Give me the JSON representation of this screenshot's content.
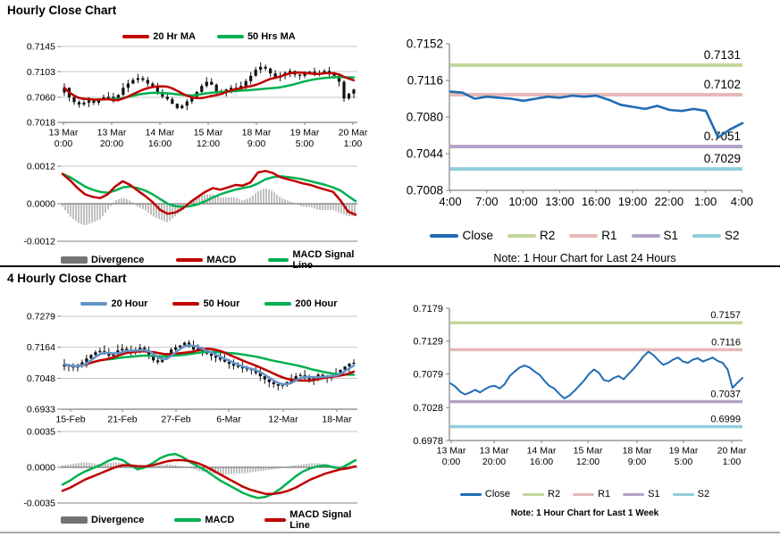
{
  "page": {
    "background": "#ffffff",
    "section_divider_color": "#000000",
    "bottom_divider_color": "#a8a8a8"
  },
  "colors": {
    "dark_red": "#C00000",
    "green": "#00B050",
    "close_blue": "#1F6CB4",
    "light_blue_ma": "#6494C8",
    "r2_olive": "#C3D69B",
    "r1_pink": "#E6B9B8",
    "s1_purple": "#B2A2C7",
    "s2_cyan": "#92CDDC",
    "divergence_gray": "#737373",
    "grid_gray": "#C6C6C6",
    "axis_gray": "#808080",
    "candle_black": "#111111"
  },
  "chart_data": [
    {
      "id": "hourly_candle",
      "type": "candlestick",
      "title": "Hourly Close Chart",
      "legend": [
        {
          "label": "20 Hr MA",
          "color": "#C00000"
        },
        {
          "label": "50 Hrs MA",
          "color": "#00B050"
        }
      ],
      "ylim": [
        0.7018,
        0.7145
      ],
      "y_ticks": [
        {
          "v": 0.7145,
          "label": "0.7145"
        },
        {
          "v": 0.7103,
          "label": "0.7103"
        },
        {
          "v": 0.706,
          "label": "0.7060"
        },
        {
          "v": 0.7018,
          "label": "0.7018"
        }
      ],
      "x_labels": [
        [
          "13 Mar",
          "0:00"
        ],
        [
          "13 Mar",
          "20:00"
        ],
        [
          "14 Mar",
          "16:00"
        ],
        [
          "15 Mar",
          "12:00"
        ],
        [
          "18 Mar",
          "9:00"
        ],
        [
          "19 Mar",
          "5:00"
        ],
        [
          "20 Mar",
          "1:00"
        ]
      ],
      "closes": [
        0.7076,
        0.706,
        0.7052,
        0.7048,
        0.7051,
        0.7055,
        0.7051,
        0.7056,
        0.706,
        0.7061,
        0.7057,
        0.7064,
        0.7076,
        0.7083,
        0.7089,
        0.7092,
        0.7089,
        0.7083,
        0.7078,
        0.7069,
        0.7061,
        0.7057,
        0.7049,
        0.7042,
        0.7046,
        0.7053,
        0.7061,
        0.7069,
        0.7079,
        0.7086,
        0.7081,
        0.707,
        0.7068,
        0.7073,
        0.7076,
        0.7071,
        0.7079,
        0.7087,
        0.7096,
        0.7106,
        0.7111,
        0.7108,
        0.71,
        0.7093,
        0.7096,
        0.7101,
        0.7104,
        0.7098,
        0.7096,
        0.7101,
        0.7103,
        0.7098,
        0.7101,
        0.7104,
        0.7099,
        0.7096,
        0.7086,
        0.7058,
        0.7066,
        0.7073
      ],
      "moving_averages": [
        {
          "name": "20 Hr MA",
          "window": 10,
          "color": "#C00000"
        },
        {
          "name": "50 Hrs MA",
          "window": 25,
          "color": "#00B050"
        }
      ]
    },
    {
      "id": "hourly_macd",
      "type": "macd",
      "ylim": [
        -0.0012,
        0.0012
      ],
      "y_ticks": [
        {
          "v": 0.0012,
          "label": "0.0012"
        },
        {
          "v": 0.0,
          "label": "0.0000"
        },
        {
          "v": -0.0012,
          "label": "-0.0012"
        }
      ],
      "legend": [
        {
          "label": "Divergence",
          "color": "#737373",
          "kind": "bar"
        },
        {
          "label": "MACD",
          "color": "#C00000",
          "kind": "line"
        },
        {
          "label": "MACD Signal Line",
          "color": "#00B050",
          "kind": "line"
        }
      ],
      "series": [
        {
          "name": "MACD Signal Line",
          "color": "#00B050",
          "values": [
            0.00095,
            0.00085,
            0.0007,
            0.00055,
            0.00045,
            0.00038,
            0.00035,
            0.00042,
            0.00052,
            0.00055,
            0.0005,
            0.00042,
            0.0003,
            0.00015,
            0.0,
            -8e-05,
            -0.0001,
            -8e-05,
            -2e-05,
            8e-05,
            0.0002,
            0.0003,
            0.00038,
            0.00045,
            0.0005,
            0.00055,
            0.00065,
            0.00078,
            0.00085,
            0.00088,
            0.00085,
            0.00082,
            0.00078,
            0.00072,
            0.00066,
            0.0006,
            0.00052,
            0.00042,
            0.00025,
            8e-05
          ]
        },
        {
          "name": "MACD",
          "color": "#C00000",
          "values": [
            0.00095,
            0.00075,
            0.0005,
            0.0003,
            0.00022,
            0.00018,
            0.0003,
            0.00055,
            0.00072,
            0.0006,
            0.00042,
            0.00025,
            5e-05,
            -0.0002,
            -0.00032,
            -0.00028,
            -0.00015,
            5e-05,
            0.00022,
            0.00038,
            0.0005,
            0.00045,
            0.00052,
            0.0006,
            0.00058,
            0.00068,
            0.001,
            0.00105,
            0.00098,
            0.00085,
            0.00078,
            0.00072,
            0.00065,
            0.0006,
            0.00052,
            0.00045,
            0.00038,
            0.0001,
            -0.00025,
            -0.00035
          ]
        }
      ],
      "divergence": [
        -0.0001,
        -0.0004,
        -0.0006,
        -0.0007,
        -0.0006,
        -0.0005,
        -0.0002,
        0.0001,
        0.0002,
        0.0001,
        -0.0001,
        -0.0002,
        -0.0004,
        -0.0005,
        -0.0006,
        -0.0004,
        -0.0002,
        0.0,
        0.0002,
        0.0003,
        0.0003,
        0.0002,
        0.0002,
        0.0002,
        0.0001,
        0.0002,
        0.0004,
        0.0005,
        0.0004,
        0.0002,
        0.0001,
        0.0,
        -0.0001,
        -0.0001,
        -0.0002,
        -0.0002,
        -0.0002,
        -0.0003,
        -0.0004,
        -0.0004
      ]
    },
    {
      "id": "hourly_levels",
      "type": "levels",
      "note": "Note: 1 Hour Chart for Last 24 Hours",
      "ylim": [
        0.7008,
        0.7152
      ],
      "y_ticks": [
        {
          "v": 0.7152,
          "label": "0.7152"
        },
        {
          "v": 0.7116,
          "label": "0.7116"
        },
        {
          "v": 0.708,
          "label": "0.7080"
        },
        {
          "v": 0.7044,
          "label": "0.7044"
        },
        {
          "v": 0.7008,
          "label": "0.7008"
        }
      ],
      "x_labels": [
        "4:00",
        "7:00",
        "10:00",
        "13:00",
        "16:00",
        "19:00",
        "22:00",
        "1:00",
        "4:00"
      ],
      "levels": [
        {
          "name": "R2",
          "value": 0.7131,
          "label": "0.7131",
          "color": "#C3D69B"
        },
        {
          "name": "R1",
          "value": 0.7102,
          "label": "0.7102",
          "color": "#E6B9B8"
        },
        {
          "name": "S1",
          "value": 0.7051,
          "label": "0.7051",
          "color": "#B2A2C7"
        },
        {
          "name": "S2",
          "value": 0.7029,
          "label": "0.7029",
          "color": "#92CDDC"
        }
      ],
      "close_color": "#1F6CB4",
      "close": [
        0.7105,
        0.7104,
        0.7098,
        0.71,
        0.7099,
        0.7098,
        0.7096,
        0.7098,
        0.71,
        0.7099,
        0.7101,
        0.71,
        0.7101,
        0.7097,
        0.7092,
        0.709,
        0.7088,
        0.7091,
        0.7087,
        0.7086,
        0.7088,
        0.7086,
        0.706,
        0.7068,
        0.7074
      ],
      "legend": [
        {
          "label": "Close",
          "color": "#1F6CB4"
        },
        {
          "label": "R2",
          "color": "#C3D69B"
        },
        {
          "label": "R1",
          "color": "#E6B9B8"
        },
        {
          "label": "S1",
          "color": "#B2A2C7"
        },
        {
          "label": "S2",
          "color": "#92CDDC"
        }
      ]
    },
    {
      "id": "four_hourly_candle",
      "type": "candlestick",
      "title": "4 Hourly Close Chart",
      "legend": [
        {
          "label": "20 Hour",
          "color": "#6494C8"
        },
        {
          "label": "50 Hour",
          "color": "#C00000"
        },
        {
          "label": "200 Hour",
          "color": "#00B050"
        }
      ],
      "ylim": [
        0.6933,
        0.7279
      ],
      "y_ticks": [
        {
          "v": 0.7279,
          "label": "0.7279"
        },
        {
          "v": 0.7164,
          "label": "0.7164"
        },
        {
          "v": 0.7048,
          "label": "0.7048"
        },
        {
          "v": 0.6933,
          "label": "0.6933"
        }
      ],
      "x_labels": [
        "15-Feb",
        "21-Feb",
        "27-Feb",
        "6-Mar",
        "12-Mar",
        "18-Mar"
      ],
      "closes": [
        0.71,
        0.7092,
        0.7088,
        0.7095,
        0.7108,
        0.7122,
        0.7135,
        0.7145,
        0.715,
        0.7142,
        0.7132,
        0.714,
        0.7152,
        0.7158,
        0.715,
        0.7144,
        0.7154,
        0.7162,
        0.715,
        0.7132,
        0.7115,
        0.7108,
        0.7122,
        0.714,
        0.7155,
        0.7163,
        0.7171,
        0.7181,
        0.7168,
        0.7155,
        0.7159,
        0.715,
        0.714,
        0.7132,
        0.7125,
        0.7118,
        0.711,
        0.7102,
        0.7095,
        0.709,
        0.7085,
        0.7082,
        0.7078,
        0.7068,
        0.7056,
        0.7044,
        0.7034,
        0.7026,
        0.702,
        0.7024,
        0.7034,
        0.7046,
        0.7056,
        0.706,
        0.7051,
        0.7044,
        0.7052,
        0.7062,
        0.7057,
        0.7051,
        0.7058,
        0.7068,
        0.708,
        0.7092,
        0.7103,
        0.7106
      ],
      "moving_averages": [
        {
          "name": "20 Hour",
          "window": 4,
          "color": "#6494C8"
        },
        {
          "name": "50 Hour",
          "window": 10,
          "color": "#C00000"
        },
        {
          "name": "200 Hour",
          "window": 28,
          "color": "#00B050"
        }
      ]
    },
    {
      "id": "four_hourly_macd",
      "type": "macd",
      "ylim": [
        -0.0035,
        0.0035
      ],
      "y_ticks": [
        {
          "v": 0.0035,
          "label": "0.0035"
        },
        {
          "v": 0.0,
          "label": "0.0000"
        },
        {
          "v": -0.0035,
          "label": "-0.0035"
        }
      ],
      "legend": [
        {
          "label": "Divergence",
          "color": "#737373",
          "kind": "bar"
        },
        {
          "label": "MACD",
          "color": "#00B050",
          "kind": "line"
        },
        {
          "label": "MACD Signal Line",
          "color": "#C00000",
          "kind": "line"
        }
      ],
      "series": [
        {
          "name": "MACD",
          "color": "#00B050",
          "values": [
            -0.0017,
            -0.0013,
            -0.0008,
            -0.0004,
            -0.0001,
            0.0002,
            0.0006,
            0.0009,
            0.0007,
            0.0002,
            -0.0002,
            0.0,
            0.0004,
            0.0009,
            0.0012,
            0.0013,
            0.001,
            0.0005,
            0.0001,
            -0.0003,
            -0.0008,
            -0.0013,
            -0.0017,
            -0.0021,
            -0.0025,
            -0.0028,
            -0.003,
            -0.0029,
            -0.0026,
            -0.0021,
            -0.0015,
            -0.0009,
            -0.0004,
            -0.0001,
            0.0001,
            0.0002,
            0.0,
            -0.0001,
            0.0003,
            0.0007
          ]
        },
        {
          "name": "MACD Signal Line",
          "color": "#C00000",
          "values": [
            -0.0023,
            -0.002,
            -0.0016,
            -0.0012,
            -0.0009,
            -0.0006,
            -0.0003,
            0.0,
            0.0002,
            0.0002,
            0.0001,
            0.0001,
            0.0002,
            0.0004,
            0.0006,
            0.0007,
            0.0007,
            0.0006,
            0.0004,
            0.0001,
            -0.0003,
            -0.0007,
            -0.0011,
            -0.0015,
            -0.0019,
            -0.0022,
            -0.0024,
            -0.0026,
            -0.0026,
            -0.0025,
            -0.0023,
            -0.002,
            -0.0016,
            -0.0012,
            -0.0009,
            -0.0006,
            -0.0004,
            -0.0002,
            -0.0001,
            0.0001
          ]
        }
      ],
      "divergence": [
        0.0002,
        0.0003,
        0.0004,
        0.0005,
        0.0004,
        0.0003,
        0.0004,
        0.0005,
        0.0004,
        0.0002,
        0.0001,
        0.0,
        0.0001,
        0.0002,
        0.0003,
        0.0002,
        0.0001,
        -0.0001,
        -0.0003,
        -0.0005,
        -0.0006,
        -0.0007,
        -0.0007,
        -0.0006,
        -0.0006,
        -0.0005,
        -0.0004,
        -0.0003,
        -0.0002,
        -0.0001,
        0.0001,
        0.0002,
        0.0003,
        0.0004,
        0.0004,
        0.0003,
        0.0002,
        0.0001,
        0.0002,
        0.0002
      ]
    },
    {
      "id": "week_levels",
      "type": "levels",
      "note": "Note: 1 Hour Chart for Last 1 Week",
      "ylim": [
        0.6978,
        0.7179
      ],
      "y_ticks": [
        {
          "v": 0.7179,
          "label": "0.7179"
        },
        {
          "v": 0.7129,
          "label": "0.7129"
        },
        {
          "v": 0.7079,
          "label": "0.7079"
        },
        {
          "v": 0.7028,
          "label": "0.7028"
        },
        {
          "v": 0.6978,
          "label": "0.6978"
        }
      ],
      "x_labels": [
        [
          "13 Mar",
          "0:00"
        ],
        [
          "13 Mar",
          "20:00"
        ],
        [
          "14 Mar",
          "16:00"
        ],
        [
          "15 Mar",
          "12:00"
        ],
        [
          "18 Mar",
          "9:00"
        ],
        [
          "19 Mar",
          "5:00"
        ],
        [
          "20 Mar",
          "1:00"
        ]
      ],
      "levels": [
        {
          "name": "R2",
          "value": 0.7157,
          "label": "0.7157",
          "color": "#C3D69B"
        },
        {
          "name": "R1",
          "value": 0.7116,
          "label": "0.7116",
          "color": "#E6B9B8"
        },
        {
          "name": "S1",
          "value": 0.7037,
          "label": "0.7037",
          "color": "#B2A2C7"
        },
        {
          "name": "S2",
          "value": 0.6999,
          "label": "0.6999",
          "color": "#92CDDC"
        }
      ],
      "close_color": "#1F6CB4",
      "close": [
        0.7065,
        0.706,
        0.7052,
        0.7048,
        0.7051,
        0.7055,
        0.7051,
        0.7056,
        0.706,
        0.7061,
        0.7057,
        0.7064,
        0.7076,
        0.7083,
        0.7089,
        0.7092,
        0.7089,
        0.7083,
        0.7078,
        0.7069,
        0.7061,
        0.7057,
        0.7049,
        0.7042,
        0.7046,
        0.7053,
        0.7061,
        0.7069,
        0.7079,
        0.7086,
        0.7081,
        0.707,
        0.7068,
        0.7073,
        0.7076,
        0.7071,
        0.7079,
        0.7087,
        0.7096,
        0.7106,
        0.7113,
        0.7108,
        0.71,
        0.7093,
        0.7096,
        0.7101,
        0.7104,
        0.7098,
        0.7096,
        0.7101,
        0.7103,
        0.7098,
        0.7101,
        0.7104,
        0.7099,
        0.7096,
        0.7086,
        0.7058,
        0.7066,
        0.7073
      ],
      "legend": [
        {
          "label": "Close",
          "color": "#1F6CB4"
        },
        {
          "label": "R2",
          "color": "#C3D69B"
        },
        {
          "label": "R1",
          "color": "#E6B9B8"
        },
        {
          "label": "S1",
          "color": "#B2A2C7"
        },
        {
          "label": "S2",
          "color": "#92CDDC"
        }
      ]
    }
  ]
}
